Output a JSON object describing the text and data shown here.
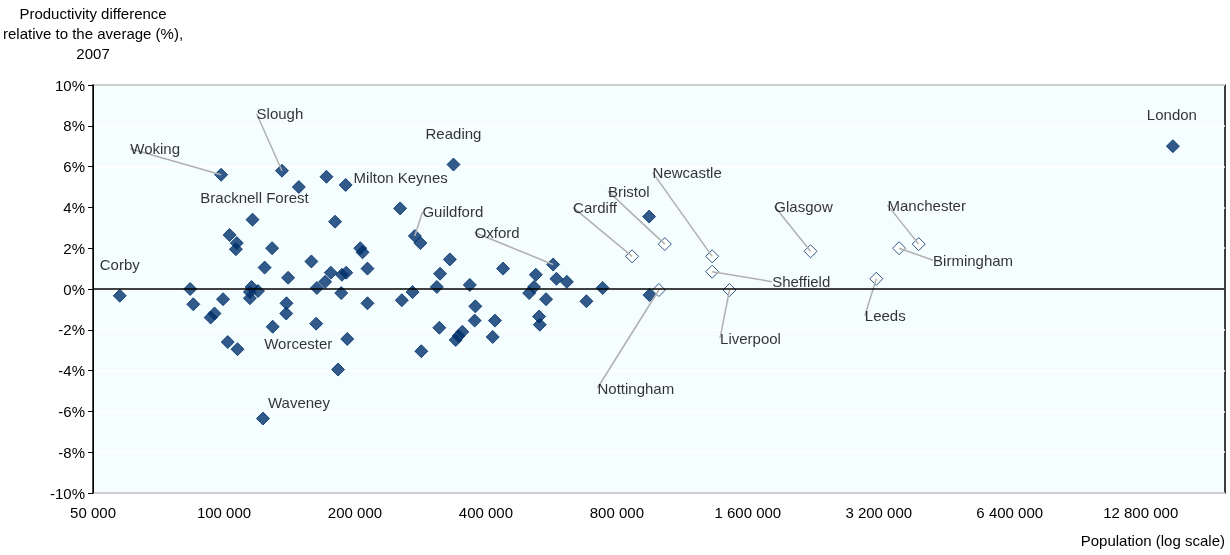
{
  "chart_data": {
    "type": "scatter",
    "ylabel": "Productivity difference\nrelative to the average (%),\n2007",
    "xlabel": "Population (log scale)",
    "log": "x",
    "grid": "y",
    "marker": "diamond",
    "xlim": [
      50000,
      20000000
    ],
    "xticks": [
      {
        "value": 50000,
        "label": "50 000"
      },
      {
        "value": 100000,
        "label": "100 000"
      },
      {
        "value": 200000,
        "label": "200 000"
      },
      {
        "value": 400000,
        "label": "400 000"
      },
      {
        "value": 800000,
        "label": "800 000"
      },
      {
        "value": 1600000,
        "label": "1 600 000"
      },
      {
        "value": 3200000,
        "label": "3 200 000"
      },
      {
        "value": 6400000,
        "label": "6 400 000"
      },
      {
        "value": 12800000,
        "label": "12 800 000"
      }
    ],
    "ylim": [
      -10,
      10
    ],
    "yticks": [
      {
        "value": -10,
        "label": "-10%"
      },
      {
        "value": -8,
        "label": "-8%"
      },
      {
        "value": -6,
        "label": "-6%"
      },
      {
        "value": -4,
        "label": "-4%"
      },
      {
        "value": -2,
        "label": "-2%"
      },
      {
        "value": 0,
        "label": "0%"
      },
      {
        "value": 2,
        "label": "2%"
      },
      {
        "value": 4,
        "label": "4%"
      },
      {
        "value": 6,
        "label": "6%"
      },
      {
        "value": 8,
        "label": "8%"
      },
      {
        "value": 10,
        "label": "10%"
      }
    ],
    "ref_lines": [
      {
        "axis": "y",
        "value": 0,
        "color": "#000000"
      }
    ],
    "series": [
      {
        "color": "#002f6c",
        "x": [
          57600,
          83600,
          85000,
          93200,
          95100,
          99500,
          98500,
          103000,
          107000,
          106500,
          102000,
          107400,
          116300,
          114700,
          115700,
          114700,
          119700,
          124000,
          129000,
          129400,
          135900,
          140400,
          139200,
          139000,
          148600,
          158800,
          163500,
          170800,
          162900,
          172000,
          180000,
          176000,
          186000,
          186700,
          191000,
          190400,
          192000,
          182900,
          122900,
          205700,
          208200,
          213700,
          213700,
          254000,
          274600,
          282800,
          336900,
          330500,
          313800,
          308500,
          271300,
          256300,
          312600,
          284200,
          340900,
          353000,
          346200,
          367300,
          378200,
          376900,
          419600,
          414600,
          438000,
          503000,
          516000,
          521000,
          550000,
          530000,
          532000,
          571000,
          581000,
          614000,
          681000,
          742000,
          949000,
          951000,
          15180000
        ],
        "values": [
          -0.33,
          0.0,
          -0.75,
          -1.4,
          -1.2,
          -0.5,
          5.6,
          2.65,
          2.25,
          1.95,
          -2.6,
          -2.95,
          3.4,
          -0.15,
          0.1,
          -0.45,
          -0.1,
          1.05,
          2.0,
          -1.85,
          5.8,
          0.55,
          -0.7,
          -1.2,
          5.0,
          1.35,
          0.05,
          0.35,
          -1.7,
          5.5,
          3.3,
          0.8,
          -0.2,
          0.7,
          0.8,
          5.1,
          -2.45,
          -3.95,
          -6.35,
          2.0,
          1.8,
          1.0,
          -0.7,
          3.95,
          2.6,
          2.25,
          6.1,
          1.45,
          0.75,
          0.1,
          -0.15,
          -0.55,
          -1.9,
          -3.05,
          -2.5,
          -2.1,
          -2.3,
          0.2,
          -0.85,
          -1.55,
          -1.55,
          -2.35,
          1.0,
          -0.2,
          0.1,
          0.7,
          -0.5,
          -1.35,
          -1.75,
          1.2,
          0.5,
          0.35,
          -0.6,
          0.05,
          3.55,
          -0.3,
          7.0
        ]
      },
      {
        "color": "#ffffff",
        "x": [
          867000,
          1031000,
          999000,
          1325000,
          1325000,
          1452000,
          2230000,
          3158000,
          3563000,
          3953000
        ],
        "values": [
          1.6,
          2.2,
          -0.05,
          1.6,
          0.85,
          -0.05,
          1.85,
          0.5,
          2.0,
          2.2
        ]
      }
    ],
    "annotations": [
      {
        "text": "Corby",
        "x": 57600,
        "y": -0.33
      },
      {
        "text": "Woking",
        "x": 98500,
        "y": 5.6
      },
      {
        "text": "Slough",
        "x": 135900,
        "y": 5.8
      },
      {
        "text": "Bracknell Forest",
        "x": 116300,
        "y": 3.4
      },
      {
        "text": "Milton Keynes",
        "x": 190400,
        "y": 5.1
      },
      {
        "text": "Reading",
        "x": 336900,
        "y": 6.1
      },
      {
        "text": "Guildford",
        "x": 274600,
        "y": 2.6
      },
      {
        "text": "Oxford",
        "x": 571000,
        "y": 1.2
      },
      {
        "text": "Cardiff",
        "x": 867000,
        "y": 1.6
      },
      {
        "text": "Bristol",
        "x": 1031000,
        "y": 2.2
      },
      {
        "text": "Nottingham",
        "x": 999000,
        "y": -0.05
      },
      {
        "text": "Newcastle",
        "x": 1325000,
        "y": 1.6
      },
      {
        "text": "Sheffield",
        "x": 1325000,
        "y": 0.85
      },
      {
        "text": "Liverpool",
        "x": 1452000,
        "y": -0.05
      },
      {
        "text": "Glasgow",
        "x": 2230000,
        "y": 1.85
      },
      {
        "text": "Leeds",
        "x": 3158000,
        "y": 0.5
      },
      {
        "text": "Birmingham",
        "x": 3563000,
        "y": 2.0
      },
      {
        "text": "Manchester",
        "x": 3953000,
        "y": 2.2
      },
      {
        "text": "Waveney",
        "x": 122900,
        "y": -6.35
      },
      {
        "text": "Worcester",
        "x": 192000,
        "y": -2.45
      },
      {
        "text": "London",
        "x": 15180000,
        "y": 7.0
      }
    ]
  }
}
